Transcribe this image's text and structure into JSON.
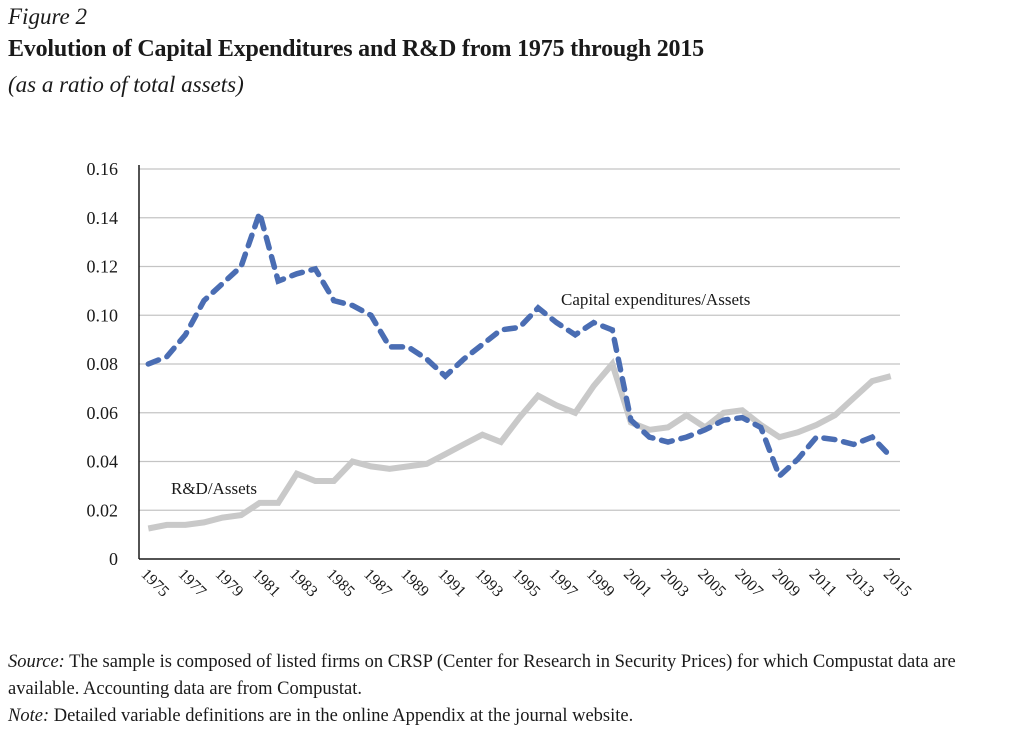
{
  "figure": {
    "label": "Figure 2",
    "title": "Evolution of Capital Expenditures and R&D from 1975 through 2015",
    "subtitle": "(as a ratio of total assets)"
  },
  "footer": {
    "source_lead": "Source:",
    "source_text": " The sample is composed of listed firms on CRSP (Center for Research in Security Prices) for which Compustat data are available. Accounting data are from Compustat.",
    "note_lead": "Note:",
    "note_text": " Detailed variable definitions are in the online Appendix at the journal website."
  },
  "colors": {
    "capex": "#4a6db3",
    "rd": "#c9c9c9",
    "grid": "#c4c4c4",
    "axis": "#1a1a1a"
  },
  "chart_data": {
    "type": "line",
    "title": "Evolution of Capital Expenditures and R&D from 1975 through 2015",
    "subtitle": "(as a ratio of total assets)",
    "xlabel": "",
    "ylabel": "",
    "x": [
      1975,
      1976,
      1977,
      1978,
      1979,
      1980,
      1981,
      1982,
      1983,
      1984,
      1985,
      1986,
      1987,
      1988,
      1989,
      1990,
      1991,
      1992,
      1993,
      1994,
      1995,
      1996,
      1997,
      1998,
      1999,
      2000,
      2001,
      2002,
      2003,
      2004,
      2005,
      2006,
      2007,
      2008,
      2009,
      2010,
      2011,
      2012,
      2013,
      2014,
      2015
    ],
    "x_tick_labels": [
      "1975",
      "1977",
      "1979",
      "1981",
      "1983",
      "1985",
      "1987",
      "1989",
      "1991",
      "1993",
      "1995",
      "1997",
      "1999",
      "2001",
      "2003",
      "2005",
      "2007",
      "2009",
      "2011",
      "2013",
      "2015"
    ],
    "ylim": [
      0,
      0.16
    ],
    "y_tick_labels": [
      "0",
      "0.02",
      "0.04",
      "0.06",
      "0.08",
      "0.10",
      "0.12",
      "0.14",
      "0.16"
    ],
    "y_ticks": [
      0,
      0.02,
      0.04,
      0.06,
      0.08,
      0.1,
      0.12,
      0.14,
      0.16
    ],
    "grid": true,
    "legend": "inline-labels",
    "series": [
      {
        "name": "Capital expenditures/Assets",
        "style": "dashed",
        "values": [
          0.08,
          0.083,
          0.092,
          0.106,
          0.113,
          0.12,
          0.142,
          0.114,
          0.117,
          0.119,
          0.106,
          0.104,
          0.1,
          0.087,
          0.087,
          0.082,
          0.075,
          0.082,
          0.088,
          0.094,
          0.095,
          0.103,
          0.097,
          0.092,
          0.097,
          0.094,
          0.057,
          0.05,
          0.048,
          0.05,
          0.053,
          0.057,
          0.058,
          0.054,
          0.034,
          0.041,
          0.05,
          0.049,
          0.047,
          0.05,
          0.042
        ]
      },
      {
        "name": "R&D/Assets",
        "style": "solid",
        "values": [
          0.0125,
          0.014,
          0.014,
          0.015,
          0.017,
          0.018,
          0.023,
          0.023,
          0.035,
          0.032,
          0.032,
          0.04,
          0.038,
          0.037,
          0.038,
          0.039,
          0.043,
          0.047,
          0.051,
          0.048,
          0.058,
          0.067,
          0.063,
          0.06,
          0.071,
          0.08,
          0.056,
          0.053,
          0.054,
          0.059,
          0.054,
          0.06,
          0.061,
          0.055,
          0.05,
          0.052,
          0.055,
          0.059,
          0.066,
          0.073,
          0.075
        ]
      }
    ],
    "annotations": [
      {
        "text": "Capital expenditures/Assets",
        "series": "Capital expenditures/Assets",
        "near_x": 1998,
        "near_y": 0.105
      },
      {
        "text": "R&D/Assets",
        "series": "R&D/Assets",
        "near_x": 1978,
        "near_y": 0.028
      }
    ]
  }
}
